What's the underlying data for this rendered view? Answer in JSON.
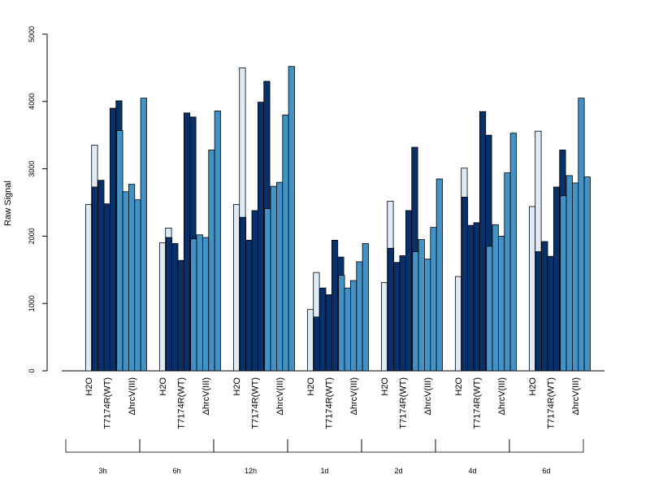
{
  "chart_data": {
    "type": "bar",
    "ylabel": "Raw Signal",
    "ylim": [
      0,
      5000
    ],
    "yticks": [
      0,
      1000,
      2000,
      3000,
      4000,
      5000
    ],
    "grid": false,
    "legend": "none",
    "time_points": [
      "3h",
      "6h",
      "12h",
      "1d",
      "2d",
      "4d",
      "6d"
    ],
    "treatment_labels": [
      "H2O",
      "T7174R(WT)",
      "ΔhrcV(III)"
    ],
    "colors": {
      "H2O": "#DEEBF7",
      "T7174R(WT)": "#08306B",
      "ΔhrcV(III)": "#4292C6"
    },
    "groups": [
      {
        "time": "3h",
        "H2O": [
          null,
          2470,
          3350
        ],
        "T7174R(WT)": [
          2730,
          2830,
          2480,
          3900,
          4010
        ],
        "ΔhrcV(III)": [
          3570,
          2660,
          2770,
          2540,
          4050
        ]
      },
      {
        "time": "6h",
        "H2O": [
          null,
          1900,
          2120
        ],
        "T7174R(WT)": [
          1980,
          1890,
          1640,
          3830,
          3770
        ],
        "ΔhrcV(III)": [
          1960,
          2020,
          1980,
          3280,
          3860
        ]
      },
      {
        "time": "12h",
        "H2O": [
          null,
          2470,
          4500
        ],
        "T7174R(WT)": [
          2280,
          1940,
          2380,
          3990,
          4300
        ],
        "ΔhrcV(III)": [
          2410,
          2740,
          2800,
          3800,
          4520
        ]
      },
      {
        "time": "1d",
        "H2O": [
          null,
          910,
          1460
        ],
        "T7174R(WT)": [
          800,
          1230,
          1130,
          1940,
          1690
        ],
        "ΔhrcV(III)": [
          1420,
          1230,
          1340,
          1620,
          1890
        ]
      },
      {
        "time": "2d",
        "H2O": [
          null,
          1310,
          2520
        ],
        "T7174R(WT)": [
          1820,
          1610,
          1710,
          2380,
          3320
        ],
        "ΔhrcV(III)": [
          1770,
          1950,
          1660,
          2130,
          2850
        ]
      },
      {
        "time": "4d",
        "H2O": [
          null,
          1400,
          3010
        ],
        "T7174R(WT)": [
          2580,
          2160,
          2200,
          3850,
          3500
        ],
        "ΔhrcV(III)": [
          1850,
          2170,
          2000,
          2940,
          3530
        ]
      },
      {
        "time": "6d",
        "H2O": [
          null,
          2440,
          3560
        ],
        "T7174R(WT)": [
          1770,
          1920,
          1700,
          2730,
          3280
        ],
        "ΔhrcV(III)": [
          2600,
          2900,
          2790,
          4050,
          2880
        ]
      }
    ]
  }
}
